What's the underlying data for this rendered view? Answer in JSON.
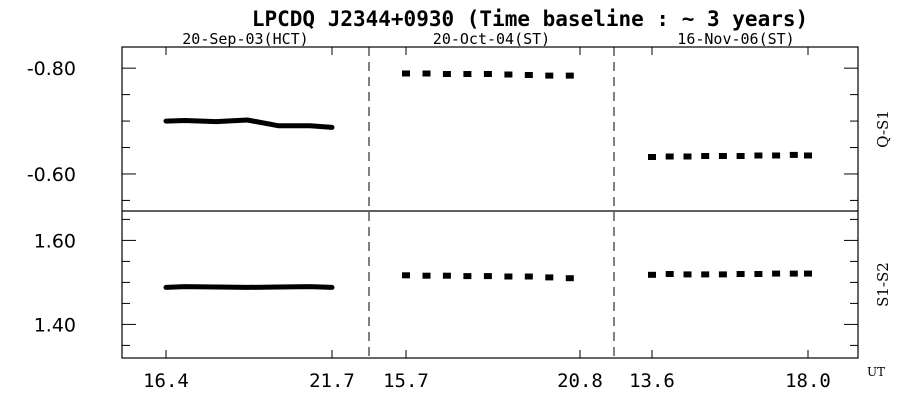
{
  "chart_data": {
    "type": "line",
    "title": "LPCDQ J2344+0930 (Time baseline : ~ 3 years)",
    "xlabel": "UT",
    "sessions": [
      {
        "label": "20-Sep-03(HCT)",
        "x_ticks": [
          "16.4",
          "21.7"
        ],
        "xrange": [
          16.4,
          21.7
        ]
      },
      {
        "label": "20-Oct-04(ST)",
        "x_ticks": [
          "15.7",
          "20.8"
        ],
        "xrange": [
          15.7,
          20.8
        ]
      },
      {
        "label": "16-Nov-06(ST)",
        "x_ticks": [
          "13.6",
          "18.0"
        ],
        "xrange": [
          13.6,
          18.0
        ]
      }
    ],
    "panels": [
      {
        "label": "Q-S1",
        "ylim": [
          -0.53,
          -0.84
        ],
        "yticks": [
          -0.8,
          -0.6
        ],
        "ytick_labels": [
          "-0.80",
          "-0.60"
        ],
        "series": [
          {
            "session": 0,
            "style": "dense",
            "x": [
              16.4,
              17.0,
              18.0,
              19.0,
              20.0,
              21.0,
              21.7
            ],
            "y": [
              -0.7,
              -0.701,
              -0.699,
              -0.702,
              -0.691,
              -0.691,
              -0.688
            ]
          },
          {
            "session": 1,
            "style": "dotted",
            "x": [
              15.7,
              16.3,
              16.9,
              17.5,
              18.1,
              18.7,
              19.3,
              19.9,
              20.5
            ],
            "y": [
              -0.79,
              -0.79,
              -0.789,
              -0.789,
              -0.789,
              -0.788,
              -0.787,
              -0.786,
              -0.786
            ]
          },
          {
            "session": 2,
            "style": "dotted",
            "x": [
              13.6,
              14.1,
              14.6,
              15.1,
              15.6,
              16.1,
              16.6,
              17.1,
              17.6,
              18.0
            ],
            "y": [
              -0.632,
              -0.633,
              -0.633,
              -0.634,
              -0.634,
              -0.634,
              -0.635,
              -0.635,
              -0.636,
              -0.635
            ]
          }
        ]
      },
      {
        "label": "S1-S2",
        "ylim": [
          1.32,
          1.67
        ],
        "yticks": [
          1.4,
          1.6
        ],
        "ytick_labels": [
          "1.40",
          "1.60"
        ],
        "series": [
          {
            "session": 0,
            "style": "dense",
            "x": [
              16.4,
              17.0,
              18.0,
              19.0,
              20.0,
              21.0,
              21.7
            ],
            "y": [
              1.488,
              1.49,
              1.489,
              1.488,
              1.489,
              1.49,
              1.488
            ]
          },
          {
            "session": 1,
            "style": "dotted",
            "x": [
              15.7,
              16.3,
              16.9,
              17.5,
              18.1,
              18.7,
              19.3,
              19.9,
              20.5
            ],
            "y": [
              1.517,
              1.516,
              1.516,
              1.515,
              1.515,
              1.514,
              1.514,
              1.512,
              1.51
            ]
          },
          {
            "session": 2,
            "style": "dotted",
            "x": [
              13.6,
              14.1,
              14.6,
              15.1,
              15.6,
              16.1,
              16.6,
              17.1,
              17.6,
              18.0
            ],
            "y": [
              1.518,
              1.52,
              1.519,
              1.519,
              1.519,
              1.52,
              1.52,
              1.521,
              1.521,
              1.521
            ]
          }
        ]
      }
    ]
  }
}
